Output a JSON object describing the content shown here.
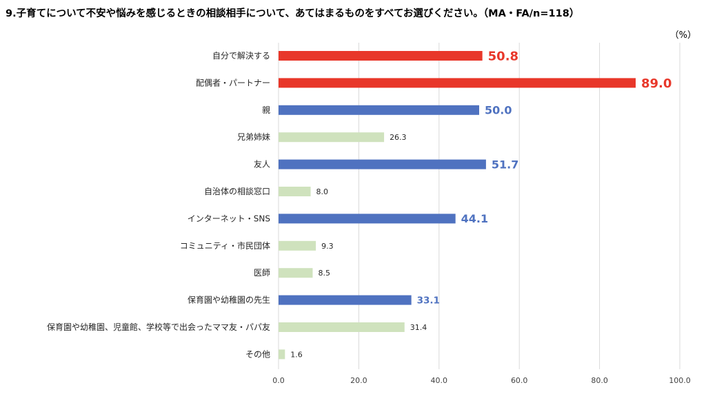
{
  "chart_data": {
    "type": "bar",
    "orientation": "horizontal",
    "title": "9.子育てについて不安や悩みを感じるときの相談相手について、あてはまるものをすべてお選びください。（MA・FA/n=118）",
    "unit": "（%）",
    "categories": [
      "自分で解決する",
      "配偶者・パートナー",
      "親",
      "兄弟姉妹",
      "友人",
      "自治体の相談窓口",
      "インターネット・SNS",
      "コミュニティ・市民団体",
      "医師",
      "保育園や幼稚園の先生",
      "保育園や幼稚園、児童館、学校等で出会ったママ友・パパ友",
      "その他"
    ],
    "values": [
      50.8,
      89.0,
      50.0,
      26.3,
      51.7,
      8.0,
      44.1,
      9.3,
      8.5,
      33.1,
      31.4,
      1.6
    ],
    "value_labels": [
      "50.8",
      "89.0",
      "50.0",
      "26.3",
      "51.7",
      "8.0",
      "44.1",
      "9.3",
      "8.5",
      "33.1",
      "31.4",
      "1.6"
    ],
    "bar_colors": [
      "#e8372a",
      "#e8372a",
      "#4f72c0",
      "#cfe2bd",
      "#4f72c0",
      "#cfe2bd",
      "#4f72c0",
      "#cfe2bd",
      "#cfe2bd",
      "#4f72c0",
      "#cfe2bd",
      "#cfe2bd"
    ],
    "label_colors": [
      "#e8372a",
      "#e8372a",
      "#4f72c0",
      "#262626",
      "#4f72c0",
      "#262626",
      "#4f72c0",
      "#262626",
      "#262626",
      "#4f72c0",
      "#262626",
      "#262626"
    ],
    "label_emphasis": [
      "large",
      "large",
      "medium",
      "small",
      "medium",
      "small",
      "medium",
      "small",
      "small",
      "mediumsmall",
      "small",
      "small"
    ],
    "xlim": [
      0,
      100
    ],
    "xticks": [
      "0.0",
      "20.0",
      "40.0",
      "60.0",
      "80.0",
      "100.0"
    ],
    "grid": true
  }
}
